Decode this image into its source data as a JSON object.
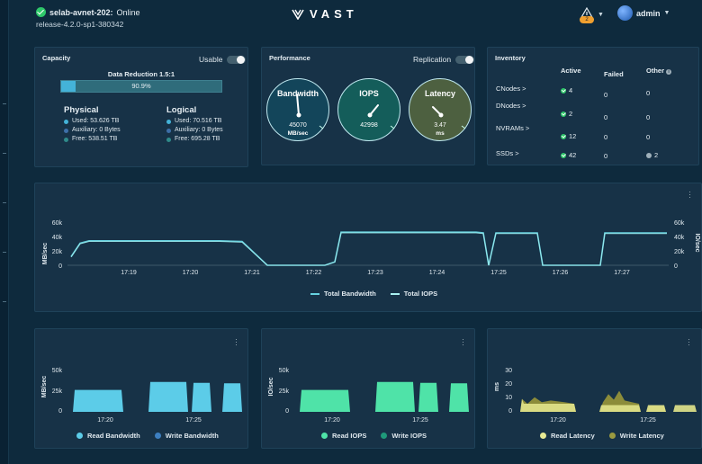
{
  "header": {
    "cluster_name": "selab-avnet-202:",
    "cluster_status": "Online",
    "release": "release-4.2.0-sp1-380342",
    "logo_text": "VAST",
    "alerts_count": "2",
    "username": "admin",
    "status_color": "#2ec86a",
    "alert_color": "#f0a030"
  },
  "capacity": {
    "title": "Capacity",
    "usable_label": "Usable",
    "data_reduction_label": "Data Reduction 1.5:1",
    "bar_percent_label": "90.9%",
    "bar_fill_fraction": 0.909,
    "physical": {
      "title": "Physical",
      "used": "Used: 53.626 TB",
      "auxiliary": "Auxiliary: 0 Bytes",
      "free": "Free: 538.51 TB"
    },
    "logical": {
      "title": "Logical",
      "used": "Used: 70.516 TB",
      "auxiliary": "Auxiliary: 0 Bytes",
      "free": "Free: 695.28 TB"
    },
    "colors": {
      "used": "#44b3d8",
      "auxiliary": "#3d6fa8",
      "free": "#2f8a8a"
    }
  },
  "performance": {
    "title": "Performance",
    "replication_label": "Replication",
    "gauges": [
      {
        "label": "Bandwidth",
        "value": "45070",
        "unit": "MB/sec",
        "bg": "#13455a"
      },
      {
        "label": "IOPS",
        "value": "42998",
        "unit": "",
        "bg": "#145d5a"
      },
      {
        "label": "Latency",
        "value": "3.47",
        "unit": "ms",
        "bg": "#4d6040"
      }
    ]
  },
  "inventory": {
    "title": "Inventory",
    "columns": [
      "Active",
      "Failed",
      "Other"
    ],
    "rows": [
      {
        "label": "CNodes >",
        "active": "4",
        "failed": "0",
        "other": "0"
      },
      {
        "label": "DNodes >",
        "active": "2",
        "failed": "0",
        "other": "0"
      },
      {
        "label": "NVRAMs >",
        "active": "12",
        "failed": "0",
        "other": "0"
      },
      {
        "label": "SSDs >",
        "active": "42",
        "failed": "0",
        "other": "2"
      }
    ]
  },
  "main_chart": {
    "type": "line",
    "yleft_label": "MB/sec",
    "yright_label": "IO/sec",
    "ylim": [
      0,
      60000
    ],
    "y_ticks": [
      "60k",
      "40k",
      "20k",
      "0"
    ],
    "x_ticks": [
      "17:19",
      "17:20",
      "17:21",
      "17:22",
      "17:23",
      "17:24",
      "17:25",
      "17:26",
      "17:27"
    ],
    "legend": [
      "Total Bandwidth",
      "Total IOPS"
    ],
    "series_color": "#66d2e0"
  },
  "small_charts": [
    {
      "ylabel": "MB/sec",
      "y_ticks": [
        "50k",
        "25k",
        "0"
      ],
      "x_ticks": [
        "17:20",
        "17:25"
      ],
      "legend": [
        "Read Bandwidth",
        "Write Bandwidth"
      ],
      "colors": [
        "#5ccce8",
        "#3d7fc0"
      ]
    },
    {
      "ylabel": "IO/sec",
      "y_ticks": [
        "50k",
        "25k",
        "0"
      ],
      "x_ticks": [
        "17:20",
        "17:25"
      ],
      "legend": [
        "Read IOPS",
        "Write IOPS"
      ],
      "colors": [
        "#4fe3a8",
        "#1f9a7a"
      ]
    },
    {
      "ylabel": "ms",
      "y_ticks": [
        "30",
        "20",
        "10",
        "0"
      ],
      "x_ticks": [
        "17:20",
        "17:25"
      ],
      "legend": [
        "Read Latency",
        "Write Latency"
      ],
      "colors": [
        "#e7ea94",
        "#9a9a40"
      ]
    }
  ],
  "chart_data": [
    {
      "type": "line",
      "ylabel": "MB/sec",
      "ylim": [
        0,
        60000
      ],
      "categories": [
        "17:19",
        "17:20",
        "17:21",
        "17:22",
        "17:23",
        "17:24",
        "17:25",
        "17:26",
        "17:27"
      ],
      "series": [
        {
          "name": "Total Bandwidth",
          "values": [
            34000,
            34000,
            33000,
            0,
            46000,
            46000,
            45000,
            0,
            45000
          ]
        },
        {
          "name": "Total IOPS",
          "values": [
            33000,
            33000,
            32000,
            0,
            45000,
            45000,
            44000,
            0,
            44000
          ]
        }
      ]
    },
    {
      "type": "area",
      "ylabel": "MB/sec",
      "ylim": [
        0,
        60000
      ],
      "categories": [
        "17:20",
        "17:25"
      ],
      "series": [
        {
          "name": "Read Bandwidth",
          "values": [
            33000,
            45000
          ]
        },
        {
          "name": "Write Bandwidth",
          "values": [
            0,
            0
          ]
        }
      ]
    },
    {
      "type": "area",
      "ylabel": "IO/sec",
      "ylim": [
        0,
        60000
      ],
      "categories": [
        "17:20",
        "17:25"
      ],
      "series": [
        {
          "name": "Read IOPS",
          "values": [
            33000,
            45000
          ]
        },
        {
          "name": "Write IOPS",
          "values": [
            0,
            0
          ]
        }
      ]
    },
    {
      "type": "area",
      "ylabel": "ms",
      "ylim": [
        0,
        35
      ],
      "categories": [
        "17:20",
        "17:25"
      ],
      "series": [
        {
          "name": "Read Latency",
          "values": [
            6,
            5
          ]
        },
        {
          "name": "Write Latency",
          "values": [
            12,
            6
          ]
        }
      ]
    }
  ]
}
